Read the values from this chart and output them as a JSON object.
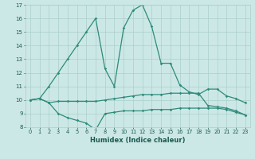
{
  "xlabel": "Humidex (Indice chaleur)",
  "x": [
    0,
    1,
    2,
    3,
    4,
    5,
    6,
    7,
    8,
    9,
    10,
    11,
    12,
    13,
    14,
    15,
    16,
    17,
    18,
    19,
    20,
    21,
    22,
    23
  ],
  "line_main": [
    10.0,
    10.1,
    11.0,
    12.0,
    13.0,
    14.0,
    15.0,
    16.0,
    12.3,
    11.0,
    15.3,
    16.6,
    17.0,
    15.4,
    12.7,
    12.7,
    11.1,
    10.6,
    10.4,
    10.8,
    10.8,
    10.3,
    10.1,
    9.8
  ],
  "line_mid": [
    10.0,
    10.1,
    9.8,
    9.9,
    9.9,
    9.9,
    9.9,
    9.9,
    10.0,
    10.1,
    10.2,
    10.3,
    10.4,
    10.4,
    10.4,
    10.5,
    10.5,
    10.5,
    10.5,
    9.6,
    9.5,
    9.4,
    9.2,
    8.9
  ],
  "line_low": [
    10.0,
    10.1,
    9.8,
    9.0,
    8.7,
    8.5,
    8.3,
    7.8,
    9.0,
    9.1,
    9.2,
    9.2,
    9.2,
    9.3,
    9.3,
    9.3,
    9.4,
    9.4,
    9.4,
    9.4,
    9.4,
    9.3,
    9.1,
    8.9
  ],
  "line_color": "#2e8b7a",
  "bg_color": "#cce8e6",
  "grid_color": "#aacfcc",
  "ylim": [
    8,
    17
  ],
  "yticks": [
    8,
    9,
    10,
    11,
    12,
    13,
    14,
    15,
    16,
    17
  ],
  "xticks": [
    0,
    1,
    2,
    3,
    4,
    5,
    6,
    7,
    8,
    9,
    10,
    11,
    12,
    13,
    14,
    15,
    16,
    17,
    18,
    19,
    20,
    21,
    22,
    23
  ]
}
